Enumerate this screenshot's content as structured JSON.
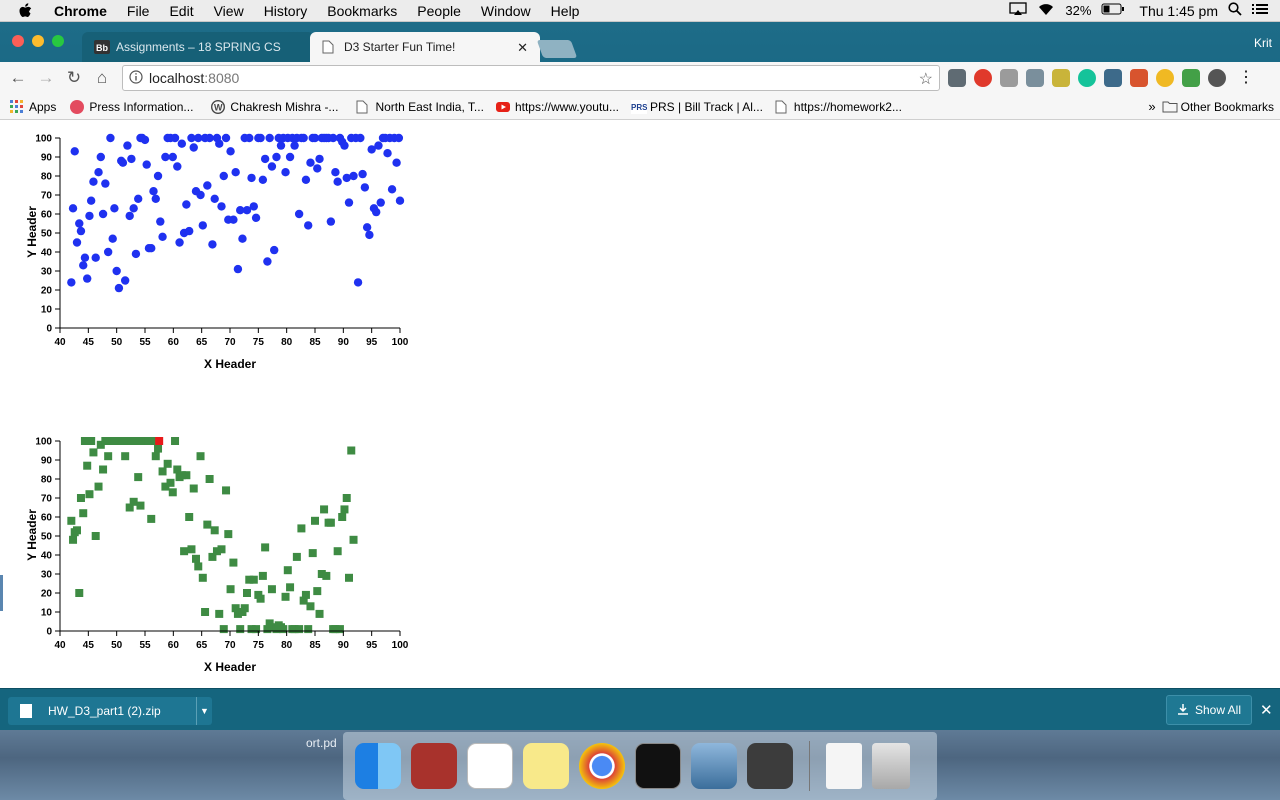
{
  "menubar": {
    "app_name": "Chrome",
    "items": [
      "File",
      "Edit",
      "View",
      "History",
      "Bookmarks",
      "People",
      "Window",
      "Help"
    ],
    "battery": "32%",
    "clock": "Thu 1:45 pm"
  },
  "tabs": [
    {
      "title": "Assignments – 18 SPRING CS",
      "favicon": "blackboard-icon"
    },
    {
      "title": "D3 Starter Fun Time!",
      "favicon": "page-icon"
    }
  ],
  "profile_name": "Krit",
  "omnibox": {
    "host": "localhost",
    "port": ":8080"
  },
  "bookmarks": {
    "apps_label": "Apps",
    "items": [
      {
        "label": "Press Information...",
        "icon": "pin-icon"
      },
      {
        "label": "Chakresh Mishra -...",
        "icon": "wordpress-icon"
      },
      {
        "label": "North East India, T...",
        "icon": "page-icon"
      },
      {
        "label": "https://www.youtu...",
        "icon": "youtube-icon"
      },
      {
        "label": "PRS | Bill Track | Al...",
        "icon": "prs-icon"
      },
      {
        "label": "https://homework2...",
        "icon": "page-icon"
      }
    ],
    "more": "»",
    "other": "Other Bookmarks"
  },
  "chart_data": [
    {
      "type": "scatter",
      "title": "",
      "xlabel": "X Header",
      "ylabel": "Y Header",
      "xlim": [
        40,
        100
      ],
      "ylim": [
        0,
        100
      ],
      "xticks": [
        "40",
        "45",
        "50",
        "55",
        "60",
        "65",
        "70",
        "75",
        "80",
        "85",
        "90",
        "95",
        "100"
      ],
      "yticks": [
        "0",
        "10",
        "20",
        "30",
        "40",
        "50",
        "60",
        "70",
        "80",
        "90",
        "100"
      ],
      "marker": "circle",
      "color": "#1f31f0",
      "points": [
        [
          42,
          24
        ],
        [
          42.3,
          63
        ],
        [
          42.6,
          93
        ],
        [
          43,
          45
        ],
        [
          43.4,
          55
        ],
        [
          43.7,
          51
        ],
        [
          44.1,
          33
        ],
        [
          44.4,
          37
        ],
        [
          44.8,
          26
        ],
        [
          45.2,
          59
        ],
        [
          45.5,
          67
        ],
        [
          45.9,
          77
        ],
        [
          46.3,
          37
        ],
        [
          46.8,
          82
        ],
        [
          47.2,
          90
        ],
        [
          47.6,
          60
        ],
        [
          48,
          76
        ],
        [
          48.5,
          40
        ],
        [
          48.9,
          100
        ],
        [
          49.3,
          47
        ],
        [
          49.6,
          63
        ],
        [
          50,
          30
        ],
        [
          50.4,
          21
        ],
        [
          50.8,
          88
        ],
        [
          51.1,
          87
        ],
        [
          51.5,
          25
        ],
        [
          51.9,
          96
        ],
        [
          52.3,
          59
        ],
        [
          52.6,
          89
        ],
        [
          53,
          63
        ],
        [
          53.4,
          39
        ],
        [
          53.8,
          68
        ],
        [
          54.2,
          100
        ],
        [
          54.5,
          100
        ],
        [
          55,
          99
        ],
        [
          55.3,
          86
        ],
        [
          55.7,
          42
        ],
        [
          56.1,
          42
        ],
        [
          56.5,
          72
        ],
        [
          56.9,
          68
        ],
        [
          57.3,
          80
        ],
        [
          57.7,
          56
        ],
        [
          58.1,
          48
        ],
        [
          58.6,
          90
        ],
        [
          59,
          100
        ],
        [
          59.5,
          100
        ],
        [
          59.9,
          90
        ],
        [
          60.3,
          100
        ],
        [
          60.7,
          85
        ],
        [
          61.1,
          45
        ],
        [
          61.5,
          97
        ],
        [
          61.9,
          50
        ],
        [
          62.3,
          65
        ],
        [
          62.8,
          51
        ],
        [
          63.2,
          100
        ],
        [
          63.6,
          95
        ],
        [
          64,
          72
        ],
        [
          64.4,
          100
        ],
        [
          64.8,
          70
        ],
        [
          65.2,
          54
        ],
        [
          65.6,
          100
        ],
        [
          66,
          75
        ],
        [
          66.4,
          100
        ],
        [
          66.9,
          44
        ],
        [
          67.3,
          68
        ],
        [
          67.7,
          100
        ],
        [
          68.1,
          97
        ],
        [
          68.5,
          64
        ],
        [
          68.9,
          80
        ],
        [
          69.3,
          100
        ],
        [
          69.7,
          57
        ],
        [
          70.1,
          93
        ],
        [
          70.6,
          57
        ],
        [
          71,
          82
        ],
        [
          71.4,
          31
        ],
        [
          71.8,
          62
        ],
        [
          72.2,
          47
        ],
        [
          72.6,
          100
        ],
        [
          73,
          62
        ],
        [
          73.4,
          100
        ],
        [
          73.8,
          79
        ],
        [
          74.2,
          64
        ],
        [
          74.6,
          58
        ],
        [
          75,
          100
        ],
        [
          75.4,
          100
        ],
        [
          75.8,
          78
        ],
        [
          76.2,
          89
        ],
        [
          76.6,
          35
        ],
        [
          77,
          100
        ],
        [
          77.4,
          85
        ],
        [
          77.8,
          41
        ],
        [
          78.2,
          90
        ],
        [
          78.6,
          100
        ],
        [
          79,
          96
        ],
        [
          79.4,
          100
        ],
        [
          79.8,
          82
        ],
        [
          80.2,
          100
        ],
        [
          80.6,
          90
        ],
        [
          81,
          100
        ],
        [
          81.4,
          96
        ],
        [
          81.8,
          100
        ],
        [
          82.2,
          60
        ],
        [
          82.6,
          100
        ],
        [
          83,
          100
        ],
        [
          83.4,
          78
        ],
        [
          83.8,
          54
        ],
        [
          84.2,
          87
        ],
        [
          84.6,
          100
        ],
        [
          85,
          100
        ],
        [
          85.4,
          84
        ],
        [
          85.8,
          89
        ],
        [
          86.2,
          100
        ],
        [
          86.6,
          100
        ],
        [
          87,
          100
        ],
        [
          87.4,
          100
        ],
        [
          87.8,
          56
        ],
        [
          88.2,
          100
        ],
        [
          88.6,
          82
        ],
        [
          89,
          77
        ],
        [
          89.4,
          100
        ],
        [
          89.8,
          98
        ],
        [
          90.2,
          96
        ],
        [
          90.6,
          79
        ],
        [
          91,
          66
        ],
        [
          91.4,
          100
        ],
        [
          91.8,
          80
        ],
        [
          92.2,
          100
        ],
        [
          92.6,
          24
        ],
        [
          93,
          100
        ],
        [
          93.4,
          81
        ],
        [
          93.8,
          74
        ],
        [
          94.2,
          53
        ],
        [
          94.6,
          49
        ],
        [
          95,
          94
        ],
        [
          95.4,
          63
        ],
        [
          95.8,
          61
        ],
        [
          96.2,
          96
        ],
        [
          96.6,
          66
        ],
        [
          97,
          100
        ],
        [
          97.4,
          100
        ],
        [
          97.8,
          92
        ],
        [
          98.2,
          100
        ],
        [
          98.6,
          73
        ],
        [
          99,
          100
        ],
        [
          99.4,
          87
        ],
        [
          99.8,
          100
        ],
        [
          100,
          67
        ]
      ]
    },
    {
      "type": "scatter",
      "title": "",
      "xlabel": "X Header",
      "ylabel": "Y Header",
      "xlim": [
        40,
        100
      ],
      "ylim": [
        0,
        100
      ],
      "xticks": [
        "40",
        "45",
        "50",
        "55",
        "60",
        "65",
        "70",
        "75",
        "80",
        "85",
        "90",
        "95",
        "100"
      ],
      "yticks": [
        "0",
        "10",
        "20",
        "30",
        "40",
        "50",
        "60",
        "70",
        "80",
        "90",
        "100"
      ],
      "marker": "square",
      "color": "#3e8b43",
      "highlight_color": "#e8191a",
      "highlight_point": [
        57.5,
        100
      ],
      "points": [
        [
          42,
          58
        ],
        [
          42.3,
          48
        ],
        [
          42.6,
          52
        ],
        [
          43,
          53
        ],
        [
          43.4,
          20
        ],
        [
          43.7,
          70
        ],
        [
          44.1,
          62
        ],
        [
          44.4,
          100
        ],
        [
          44.8,
          87
        ],
        [
          45.2,
          72
        ],
        [
          45.5,
          100
        ],
        [
          45.9,
          94
        ],
        [
          46.3,
          50
        ],
        [
          46.8,
          76
        ],
        [
          47.2,
          98
        ],
        [
          47.6,
          85
        ],
        [
          48,
          100
        ],
        [
          48.5,
          92
        ],
        [
          48.9,
          100
        ],
        [
          49.3,
          100
        ],
        [
          49.6,
          100
        ],
        [
          50,
          100
        ],
        [
          50.4,
          100
        ],
        [
          50.8,
          100
        ],
        [
          51.1,
          100
        ],
        [
          51.5,
          92
        ],
        [
          51.9,
          100
        ],
        [
          52.3,
          65
        ],
        [
          52.6,
          100
        ],
        [
          53,
          68
        ],
        [
          53.4,
          100
        ],
        [
          53.8,
          81
        ],
        [
          54.2,
          66
        ],
        [
          54.5,
          100
        ],
        [
          55,
          100
        ],
        [
          55.3,
          100
        ],
        [
          55.7,
          100
        ],
        [
          56.1,
          59
        ],
        [
          56.5,
          100
        ],
        [
          56.9,
          92
        ],
        [
          57.3,
          96
        ],
        [
          58.1,
          84
        ],
        [
          58.6,
          76
        ],
        [
          59,
          88
        ],
        [
          59.5,
          78
        ],
        [
          59.9,
          73
        ],
        [
          60.3,
          100
        ],
        [
          60.7,
          85
        ],
        [
          61.1,
          81
        ],
        [
          61.5,
          82
        ],
        [
          61.9,
          42
        ],
        [
          62.3,
          82
        ],
        [
          62.8,
          60
        ],
        [
          63.2,
          43
        ],
        [
          63.6,
          75
        ],
        [
          64,
          38
        ],
        [
          64.4,
          34
        ],
        [
          64.8,
          92
        ],
        [
          65.2,
          28
        ],
        [
          65.6,
          10
        ],
        [
          66,
          56
        ],
        [
          66.4,
          80
        ],
        [
          66.9,
          39
        ],
        [
          67.3,
          53
        ],
        [
          67.7,
          42
        ],
        [
          68.1,
          9
        ],
        [
          68.5,
          43
        ],
        [
          68.9,
          1
        ],
        [
          69.3,
          74
        ],
        [
          69.7,
          51
        ],
        [
          70.1,
          22
        ],
        [
          70.6,
          36
        ],
        [
          71,
          12
        ],
        [
          71.4,
          9
        ],
        [
          71.8,
          1
        ],
        [
          72.2,
          10
        ],
        [
          72.6,
          12
        ],
        [
          73,
          20
        ],
        [
          73.4,
          27
        ],
        [
          73.8,
          1
        ],
        [
          74.2,
          27
        ],
        [
          74.6,
          1
        ],
        [
          75,
          19
        ],
        [
          75.4,
          17
        ],
        [
          75.8,
          29
        ],
        [
          76.2,
          44
        ],
        [
          76.6,
          1
        ],
        [
          77,
          4
        ],
        [
          77.4,
          22
        ],
        [
          77.8,
          2
        ],
        [
          78.2,
          1
        ],
        [
          78.6,
          3
        ],
        [
          79,
          2
        ],
        [
          79.4,
          1
        ],
        [
          79.8,
          18
        ],
        [
          80.2,
          32
        ],
        [
          80.6,
          23
        ],
        [
          81,
          1
        ],
        [
          81.4,
          1
        ],
        [
          81.8,
          39
        ],
        [
          82.2,
          1
        ],
        [
          82.6,
          54
        ],
        [
          83,
          16
        ],
        [
          83.4,
          19
        ],
        [
          83.8,
          1
        ],
        [
          84.2,
          13
        ],
        [
          84.6,
          41
        ],
        [
          85,
          58
        ],
        [
          85.4,
          21
        ],
        [
          85.8,
          9
        ],
        [
          86.2,
          30
        ],
        [
          86.6,
          64
        ],
        [
          87,
          29
        ],
        [
          87.4,
          57
        ],
        [
          87.8,
          57
        ],
        [
          88.2,
          1
        ],
        [
          88.6,
          1
        ],
        [
          89,
          42
        ],
        [
          89.4,
          1
        ],
        [
          89.8,
          60
        ],
        [
          90.2,
          64
        ],
        [
          90.6,
          70
        ],
        [
          91,
          28
        ],
        [
          91.4,
          95
        ],
        [
          91.8,
          48
        ]
      ]
    }
  ],
  "download": {
    "filename": "HW_D3_part1 (2).zip",
    "show_all": "Show All"
  },
  "desktop": {
    "label": "ort.pd"
  }
}
